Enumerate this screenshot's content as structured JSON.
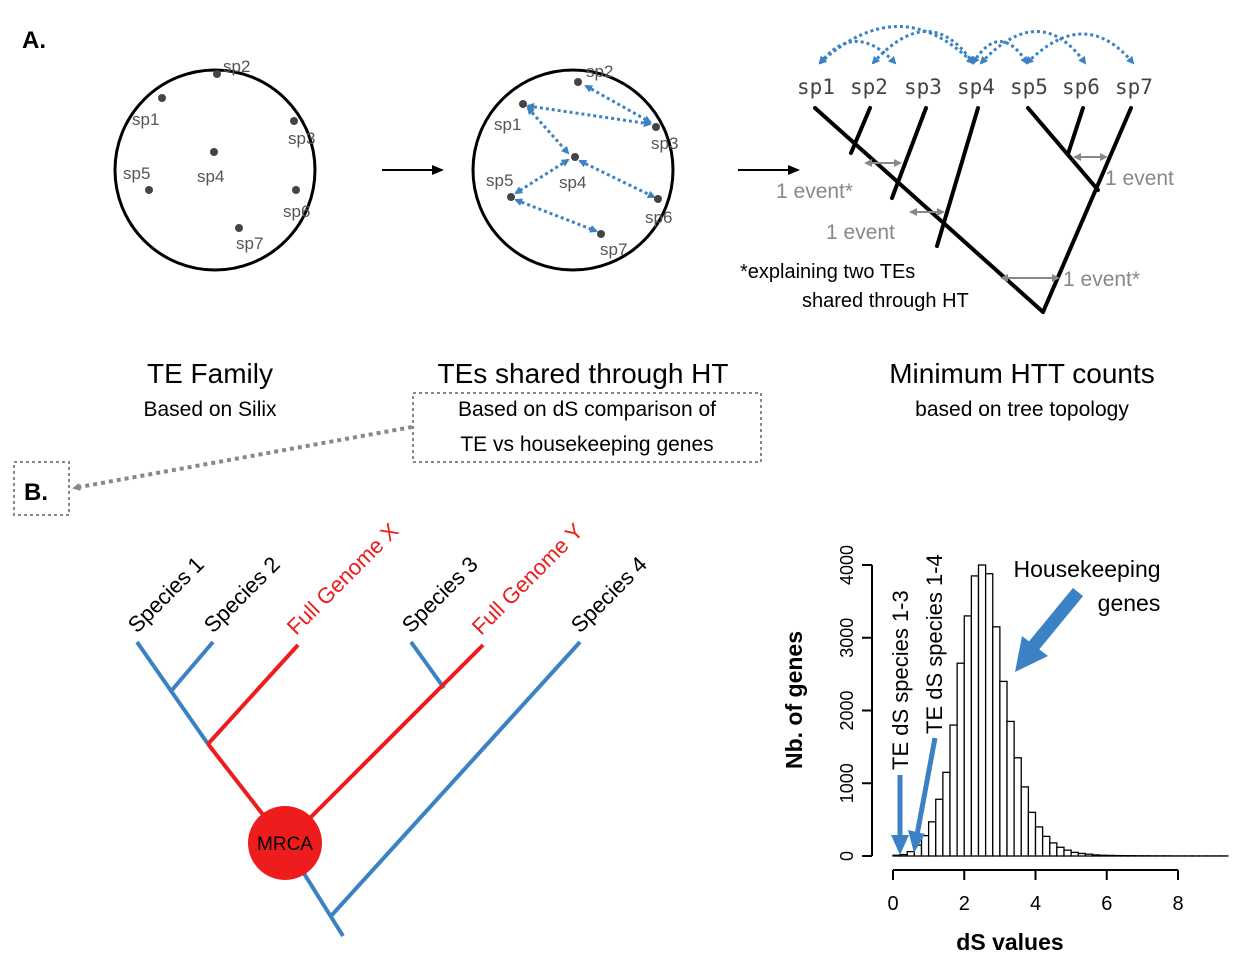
{
  "colors": {
    "blue": "#3b82c4",
    "red": "#ee1c1c",
    "gray": "#777777",
    "dark": "#444444"
  },
  "panel_a": {
    "label": "A.",
    "circle1": {
      "species": [
        "sp1",
        "sp2",
        "sp3",
        "sp4",
        "sp5",
        "sp6",
        "sp7"
      ],
      "title": "TE Family",
      "subtitle": "Based on Silix"
    },
    "circle2": {
      "species": [
        "sp1",
        "sp2",
        "sp3",
        "sp4",
        "sp5",
        "sp6",
        "sp7"
      ],
      "title": "TEs shared through HT",
      "subtitle_line1": "Based on dS comparison of",
      "subtitle_line2": "TE vs housekeeping genes"
    },
    "tree": {
      "tips": [
        "sp1",
        "sp2",
        "sp3",
        "sp4",
        "sp5",
        "sp6",
        "sp7"
      ],
      "events": [
        "1 event*",
        "1 event",
        "1 event*",
        "1 event"
      ],
      "footnote_line1": "*explaining two TEs",
      "footnote_line2": "shared through HT",
      "title": "Minimum HTT counts",
      "subtitle": "based on tree topology"
    }
  },
  "panel_b": {
    "label": "B.",
    "tree": {
      "tips": [
        "Species 1",
        "Species 2",
        "Full Genome X",
        "Species 3",
        "Full Genome Y",
        "Species 4"
      ],
      "root_label": "MRCA"
    },
    "chart_labels": {
      "ylabel": "Nb. of genes",
      "xlabel": "dS values",
      "ann_housekeeping_1": "Housekeeping",
      "ann_housekeeping_2": "genes",
      "ann_te13": "TE dS species 1-3",
      "ann_te14": "TE dS species 1-4"
    }
  },
  "chart_data": {
    "type": "bar",
    "xlabel": "dS values",
    "ylabel": "Nb. of genes",
    "xlim": [
      0,
      9.5
    ],
    "ylim": [
      0,
      4200
    ],
    "xticks": [
      0,
      2,
      4,
      6,
      8
    ],
    "yticks": [
      0,
      1000,
      2000,
      3000,
      4000
    ],
    "bin_width": 0.2,
    "bin_starts": [
      0.0,
      0.2,
      0.4,
      0.6,
      0.8,
      1.0,
      1.2,
      1.4,
      1.6,
      1.8,
      2.0,
      2.2,
      2.4,
      2.6,
      2.8,
      3.0,
      3.2,
      3.4,
      3.6,
      3.8,
      4.0,
      4.2,
      4.4,
      4.6,
      4.8,
      5.0,
      5.2,
      5.4,
      5.6,
      5.8,
      6.0,
      6.2,
      6.4,
      6.6,
      6.8,
      7.0,
      7.2,
      7.4,
      7.6,
      7.8,
      8.0,
      8.2,
      8.4,
      8.6,
      8.8,
      9.0,
      9.2
    ],
    "values": [
      10,
      20,
      60,
      150,
      280,
      470,
      780,
      1150,
      1800,
      2650,
      3300,
      3850,
      4000,
      3880,
      3150,
      2400,
      1850,
      1350,
      950,
      600,
      400,
      270,
      180,
      120,
      80,
      50,
      35,
      25,
      15,
      10,
      8,
      6,
      5,
      4,
      3,
      3,
      2,
      2,
      2,
      1,
      1,
      1,
      1,
      1,
      1,
      1,
      1
    ]
  }
}
